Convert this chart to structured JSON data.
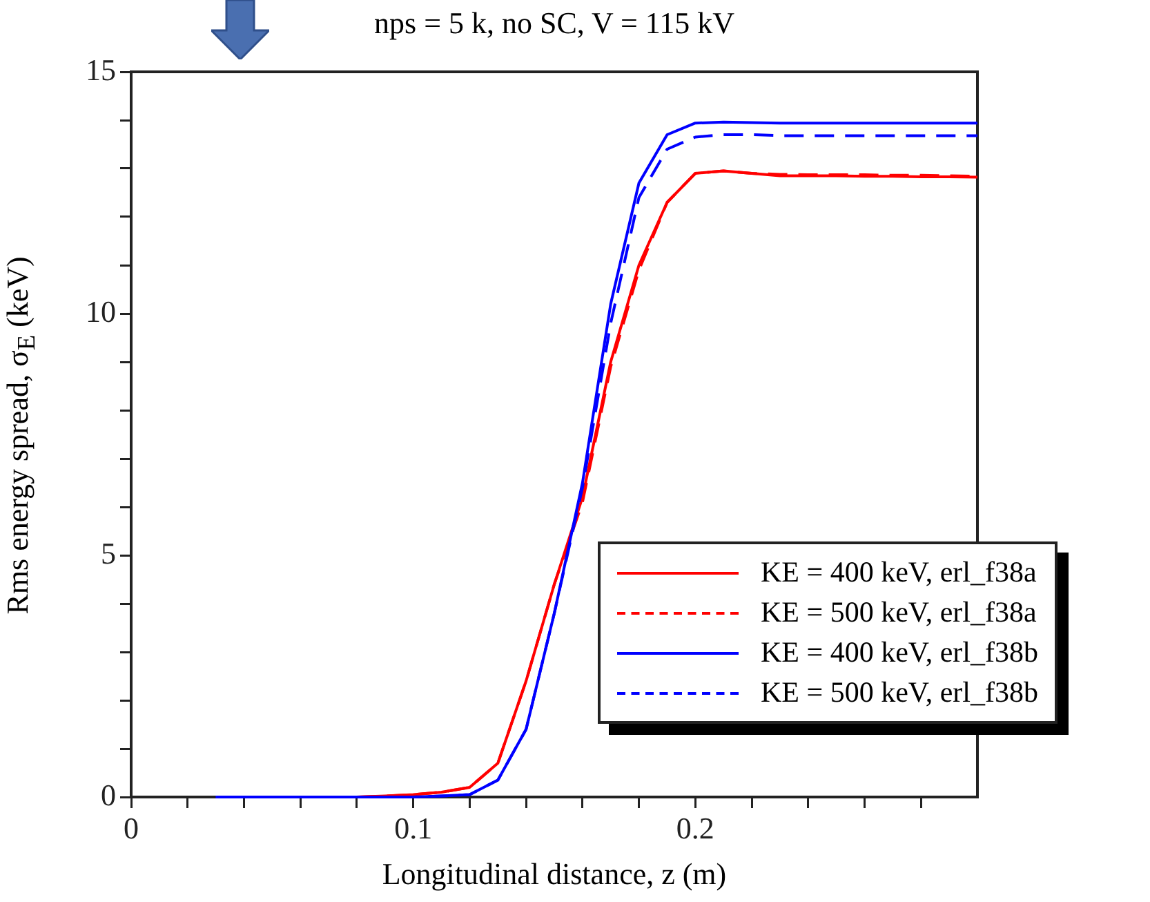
{
  "chart_data": {
    "type": "line",
    "title": "nps = 5 k, no SC, V = 115 kV",
    "xlabel": "Longitudinal distance, z (m)",
    "ylabel": "Rms energy spread, σ$_{E}$ (keV)",
    "x": [
      0.03,
      0.04,
      0.05,
      0.06,
      0.07,
      0.08,
      0.09,
      0.1,
      0.11,
      0.12,
      0.13,
      0.14,
      0.15,
      0.16,
      0.17,
      0.18,
      0.19,
      0.2,
      0.21,
      0.22,
      0.23,
      0.24,
      0.25,
      0.26,
      0.27,
      0.28,
      0.29,
      0.3
    ],
    "series": [
      {
        "name": "KE = 400 keV, erl_f38a",
        "color": "#ff0000",
        "line_style": "solid",
        "values": [
          null,
          null,
          null,
          null,
          null,
          0,
          0.02,
          0.05,
          0.1,
          0.2,
          0.7,
          2.4,
          4.4,
          6.2,
          9.0,
          11.0,
          12.3,
          12.9,
          12.95,
          12.9,
          12.85,
          12.85,
          12.85,
          12.84,
          12.84,
          12.83,
          12.83,
          12.82
        ]
      },
      {
        "name": "KE = 500 keV, erl_f38a",
        "color": "#ff0000",
        "line_style": "dashed",
        "values": [
          null,
          null,
          null,
          null,
          null,
          0,
          0.02,
          0.05,
          0.1,
          0.2,
          0.7,
          2.4,
          4.4,
          6.1,
          8.9,
          10.9,
          12.3,
          12.9,
          12.95,
          12.9,
          12.88,
          12.87,
          12.87,
          12.87,
          12.86,
          12.86,
          12.85,
          12.84
        ]
      },
      {
        "name": "KE = 400 keV, erl_f38b",
        "color": "#0000ff",
        "line_style": "solid",
        "values": [
          0,
          0,
          0,
          0,
          0,
          0,
          0,
          0,
          0.02,
          0.05,
          0.35,
          1.4,
          3.8,
          6.5,
          10.2,
          12.7,
          13.7,
          13.94,
          13.96,
          13.95,
          13.94,
          13.94,
          13.94,
          13.94,
          13.94,
          13.94,
          13.94,
          13.94
        ]
      },
      {
        "name": "KE = 500 keV, erl_f38b",
        "color": "#0000ff",
        "line_style": "dashed",
        "values": [
          0,
          0,
          0,
          0,
          0,
          0,
          0,
          0,
          0.02,
          0.05,
          0.35,
          1.4,
          3.8,
          6.4,
          9.8,
          12.4,
          13.4,
          13.65,
          13.7,
          13.7,
          13.68,
          13.68,
          13.68,
          13.68,
          13.68,
          13.68,
          13.68,
          13.68
        ]
      }
    ],
    "xlim": [
      0,
      0.3
    ],
    "xticks": [
      0,
      {
        "value": 0.02,
        "label": null
      },
      {
        "value": 0.04,
        "label": null
      },
      {
        "value": 0.06,
        "label": null
      },
      {
        "value": 0.08,
        "label": null
      },
      0.1,
      {
        "value": 0.12,
        "label": null
      },
      {
        "value": 0.14,
        "label": null
      },
      {
        "value": 0.16,
        "label": null
      },
      {
        "value": 0.18,
        "label": null
      },
      0.2,
      {
        "value": 0.22,
        "label": null
      },
      {
        "value": 0.24,
        "label": null
      },
      {
        "value": 0.26,
        "label": null
      },
      {
        "value": 0.28,
        "label": null
      }
    ],
    "ylim": [
      0,
      15
    ],
    "yticks": [
      0,
      {
        "value": 1,
        "label": null
      },
      {
        "value": 2,
        "label": null
      },
      {
        "value": 3,
        "label": null
      },
      {
        "value": 4,
        "label": null
      },
      5,
      {
        "value": 6,
        "label": null
      },
      {
        "value": 7,
        "label": null
      },
      {
        "value": 8,
        "label": null
      },
      {
        "value": 9,
        "label": null
      },
      10,
      {
        "value": 11,
        "label": null
      },
      {
        "value": 12,
        "label": null
      },
      {
        "value": 13,
        "label": null
      },
      {
        "value": 14,
        "label": null
      },
      15
    ],
    "grid": false,
    "legend": "bottom right",
    "marker": "none"
  }
}
